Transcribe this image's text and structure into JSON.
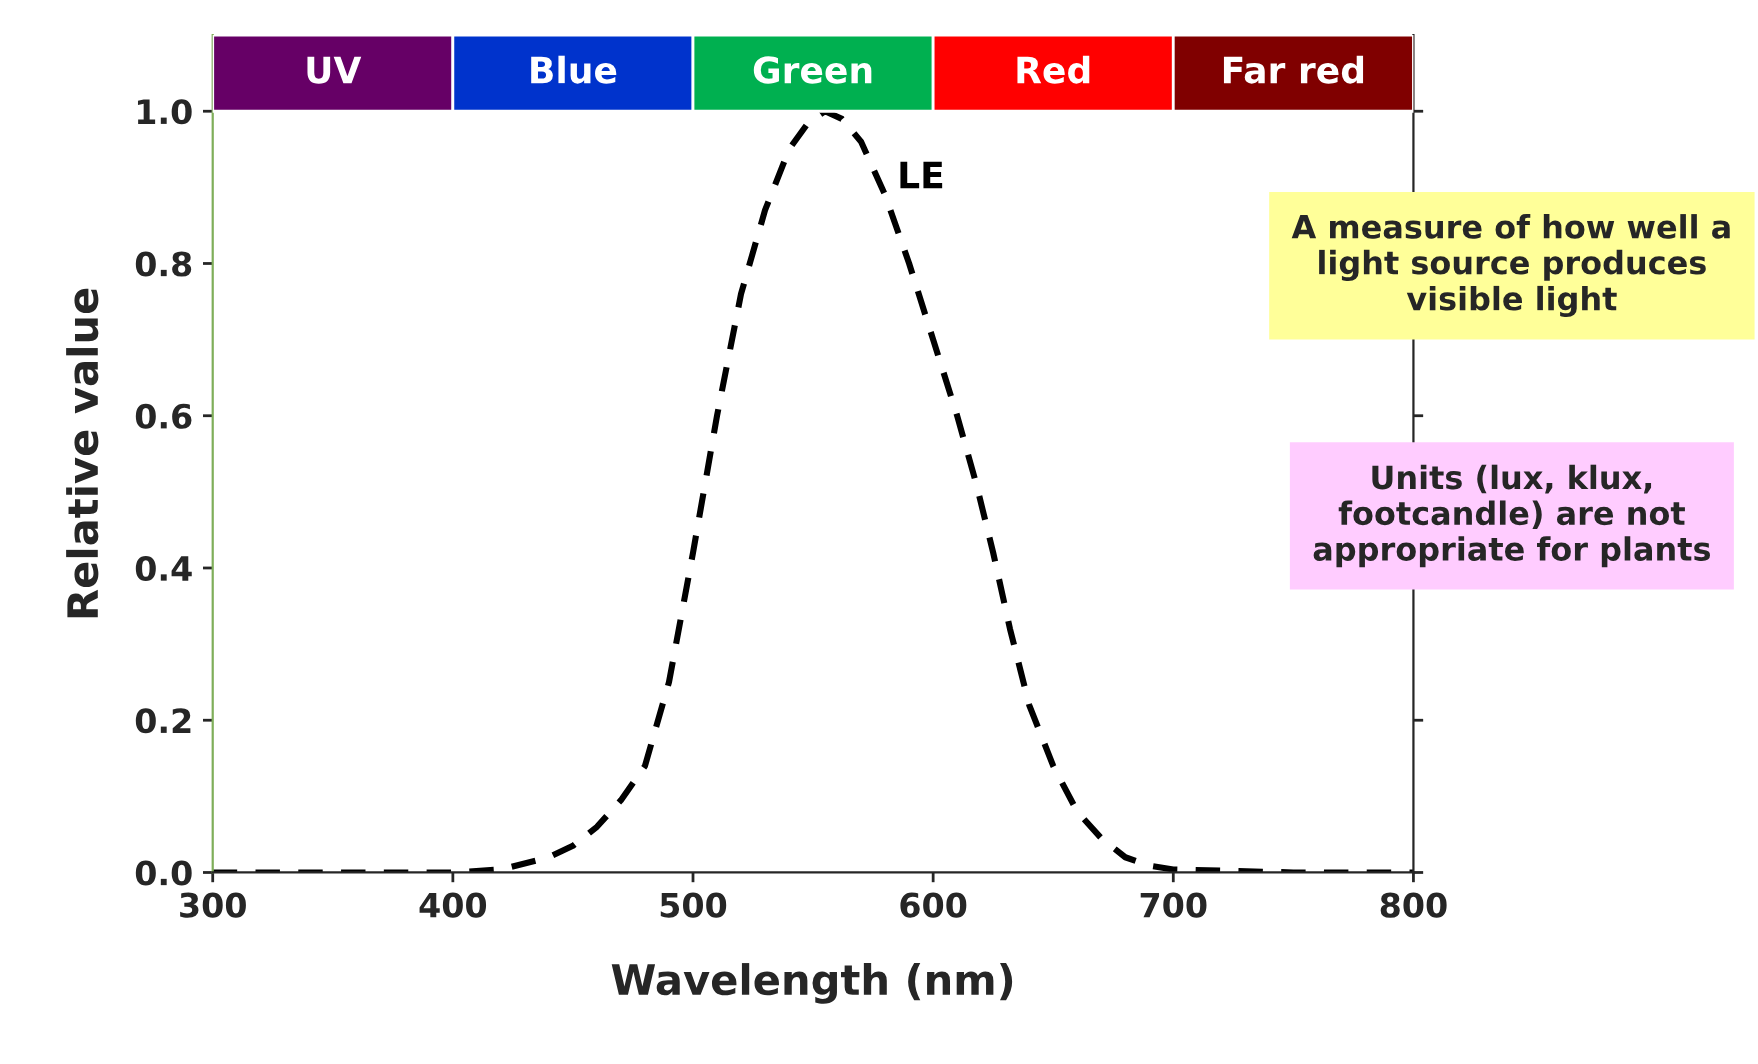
{
  "chart_data": {
    "type": "line",
    "xlabel": "Wavelength (nm)",
    "ylabel": "Relative value",
    "xlim": [
      300,
      800
    ],
    "xticks": [
      300,
      400,
      500,
      600,
      700,
      800
    ],
    "ylim": [
      0,
      1.1
    ],
    "yticks": [
      {
        "value": 0,
        "label": "0.0"
      },
      {
        "value": 0.2,
        "label": "0.2"
      },
      {
        "value": 0.4,
        "label": "0.4"
      },
      {
        "value": 0.6,
        "label": "0.6"
      },
      {
        "value": 0.8,
        "label": "0.8"
      },
      {
        "value": 1.0,
        "label": "1.0"
      }
    ],
    "series": [
      {
        "name": "LE",
        "color": "#000000",
        "line_style": "dashed",
        "x": [
          300,
          350,
          400,
          420,
          440,
          450,
          460,
          470,
          480,
          490,
          500,
          510,
          520,
          530,
          540,
          548,
          555,
          562,
          570,
          580,
          590,
          600,
          610,
          618,
          625,
          632,
          640,
          650,
          660,
          670,
          680,
          690,
          700,
          750,
          800
        ],
        "values": [
          0,
          0,
          0,
          0.004,
          0.02,
          0.035,
          0.06,
          0.095,
          0.14,
          0.25,
          0.42,
          0.6,
          0.76,
          0.87,
          0.95,
          0.985,
          1.0,
          0.99,
          0.96,
          0.89,
          0.8,
          0.7,
          0.6,
          0.51,
          0.42,
          0.32,
          0.22,
          0.14,
          0.08,
          0.045,
          0.02,
          0.009,
          0.004,
          0,
          0
        ]
      }
    ],
    "bands": [
      {
        "axis": "x",
        "from": 300,
        "to": 400,
        "label": "UV",
        "color": "#660066"
      },
      {
        "axis": "x",
        "from": 400,
        "to": 500,
        "label": "Blue",
        "color": "#0033cc"
      },
      {
        "axis": "x",
        "from": 500,
        "to": 600,
        "label": "Green",
        "color": "#00b050"
      },
      {
        "axis": "x",
        "from": 600,
        "to": 700,
        "label": "Red",
        "color": "#ff0000"
      },
      {
        "axis": "x",
        "from": 700,
        "to": 800,
        "label": "Far red",
        "color": "#800000"
      }
    ],
    "annotations": [
      "A measure of how well a light source produces visible light",
      "Units (lux, klux, footcandle) are not appropriate for plants"
    ],
    "grid": false,
    "legend": false
  }
}
